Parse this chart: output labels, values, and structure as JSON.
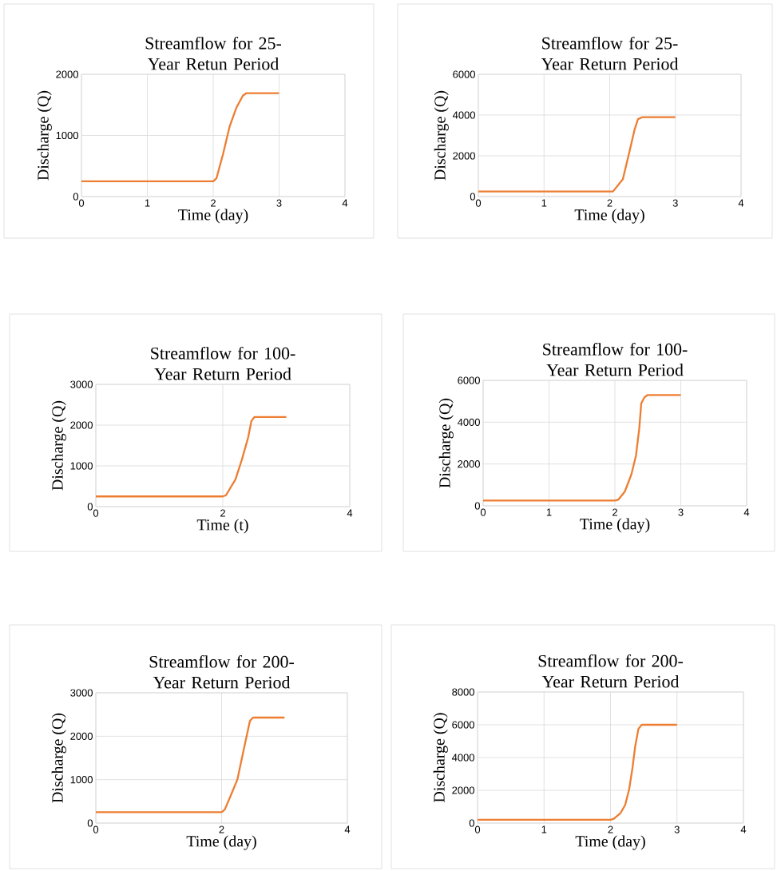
{
  "chart_data": [
    {
      "type": "line",
      "title": "Streamflow for 25-Year Retun Period",
      "xlabel": "Time (day)",
      "ylabel": "Discharge (Q)",
      "color": "#ed7d31",
      "grid": true,
      "xlim": [
        0,
        4
      ],
      "xticks": [
        0,
        1,
        2,
        3,
        4
      ],
      "ylim": [
        0,
        2000
      ],
      "yticks": [
        0,
        1000,
        2000
      ],
      "x": [
        0,
        2.0,
        2.05,
        2.15,
        2.25,
        2.35,
        2.45,
        2.5,
        3
      ],
      "values": [
        250,
        250,
        300,
        700,
        1150,
        1450,
        1650,
        1690,
        1690
      ]
    },
    {
      "type": "line",
      "title": "Streamflow for 25-Year Return Period",
      "xlabel": "Time (day)",
      "ylabel": "Discharge (Q)",
      "color": "#ed7d31",
      "grid": true,
      "xlim": [
        0,
        4
      ],
      "xticks": [
        0,
        1,
        2,
        3,
        4
      ],
      "ylim": [
        0,
        6000
      ],
      "yticks": [
        0,
        2000,
        4000,
        6000
      ],
      "x": [
        0,
        2.05,
        2.2,
        2.3,
        2.38,
        2.43,
        2.5,
        3
      ],
      "values": [
        250,
        250,
        850,
        2200,
        3300,
        3800,
        3900,
        3900
      ]
    },
    {
      "type": "line",
      "title": "Streamflow for 100-Year Return Period",
      "xlabel": "Time (t)",
      "ylabel": "Discharge (Q)",
      "color": "#ed7d31",
      "grid": true,
      "xlim": [
        0,
        4
      ],
      "xticks": [
        0,
        2,
        4
      ],
      "ylim": [
        0,
        3000
      ],
      "yticks": [
        0,
        1000,
        2000,
        3000
      ],
      "x": [
        0,
        2.0,
        2.05,
        2.2,
        2.3,
        2.4,
        2.45,
        2.5,
        3
      ],
      "values": [
        250,
        250,
        280,
        670,
        1150,
        1700,
        2100,
        2200,
        2200
      ]
    },
    {
      "type": "line",
      "title": "Streamflow for 100-Year Return Period",
      "xlabel": "Time (day)",
      "ylabel": "Discharge (Q)",
      "color": "#ed7d31",
      "grid": true,
      "xlim": [
        0,
        4
      ],
      "xticks": [
        0,
        1,
        2,
        3,
        4
      ],
      "ylim": [
        0,
        6000
      ],
      "yticks": [
        0,
        2000,
        4000,
        6000
      ],
      "x": [
        0,
        2.0,
        2.05,
        2.15,
        2.25,
        2.32,
        2.37,
        2.4,
        2.45,
        2.5,
        3
      ],
      "values": [
        250,
        250,
        290,
        680,
        1500,
        2400,
        3700,
        4900,
        5200,
        5300,
        5300
      ]
    },
    {
      "type": "line",
      "title": "Streamflow for 200-Year Return Period",
      "xlabel": "Time (day)",
      "ylabel": "Discharge (Q)",
      "color": "#ed7d31",
      "grid": true,
      "xlim": [
        0,
        4
      ],
      "xticks": [
        0,
        2,
        4
      ],
      "ylim": [
        0,
        3000
      ],
      "yticks": [
        0,
        1000,
        2000,
        3000
      ],
      "x": [
        0,
        2.0,
        2.05,
        2.15,
        2.25,
        2.35,
        2.42,
        2.45,
        2.5,
        3
      ],
      "values": [
        250,
        250,
        310,
        650,
        1000,
        1680,
        2150,
        2350,
        2430,
        2430
      ]
    },
    {
      "type": "line",
      "title": "Streamflow for 200-Year Return Period",
      "xlabel": "Time (day)",
      "ylabel": "Discharge (Q)",
      "color": "#ed7d31",
      "grid": true,
      "xlim": [
        0,
        4
      ],
      "xticks": [
        0,
        1,
        2,
        3,
        4
      ],
      "ylim": [
        0,
        8000
      ],
      "yticks": [
        0,
        2000,
        4000,
        6000,
        8000
      ],
      "x": [
        0,
        2.0,
        2.05,
        2.15,
        2.22,
        2.28,
        2.33,
        2.37,
        2.42,
        2.47,
        3
      ],
      "values": [
        200,
        200,
        260,
        610,
        1100,
        2050,
        3350,
        4650,
        5750,
        6000,
        6000
      ]
    }
  ]
}
